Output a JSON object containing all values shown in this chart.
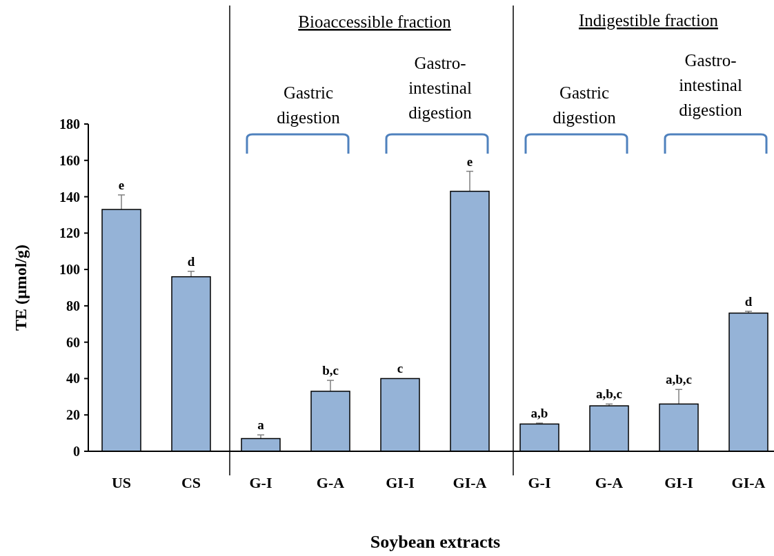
{
  "chart_data": {
    "type": "bar",
    "categories": [
      "US",
      "CS",
      "G-I",
      "G-A",
      "GI-I",
      "GI-A",
      "G-I",
      "G-A",
      "GI-I",
      "GI-A"
    ],
    "values": [
      133,
      96,
      7,
      33,
      40,
      143,
      15,
      25,
      26,
      76
    ],
    "errors": [
      8,
      3,
      2,
      6,
      0,
      11,
      0.5,
      1,
      8,
      1
    ],
    "color": "#95b3d7",
    "xlabel": "Soybean extracts",
    "ylabel": "TE (µmol/g)",
    "ylim": [
      0,
      180
    ],
    "yticks": [
      0,
      20,
      40,
      60,
      80,
      100,
      120,
      140,
      160,
      180
    ],
    "grid": false,
    "annotations": [
      "Bioaccessible fraction",
      "Indigestible fraction",
      "Gastric digestion",
      "Gastro-intestinal digestion",
      "Gastric digestion",
      "Gastro-intestinal digestion",
      "e",
      "d",
      "a",
      "b,c",
      "c",
      "e",
      "a,b",
      "a,b,c",
      "a,b,c",
      "d"
    ]
  }
}
